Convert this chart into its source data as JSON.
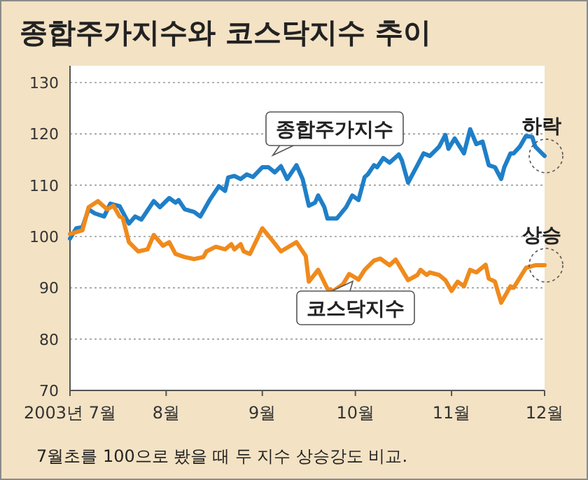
{
  "chart_data": {
    "type": "line",
    "title": "종합주가지수와 코스닥지수 추이",
    "xlim": [
      "2003-07-01",
      "2003-12-01"
    ],
    "xticks": [
      {
        "value": "2003-07-01",
        "label": "2003년 7월"
      },
      {
        "value": "2003-08-01",
        "label": "8월"
      },
      {
        "value": "2003-09-01",
        "label": "9월"
      },
      {
        "value": "2003-10-01",
        "label": "10월"
      },
      {
        "value": "2003-11-01",
        "label": "11월"
      },
      {
        "value": "2003-12-01",
        "label": "12월"
      }
    ],
    "ylim": [
      70,
      130
    ],
    "yticks": [
      70,
      80,
      90,
      100,
      110,
      120,
      130
    ],
    "grid": "y",
    "legend": false,
    "marker": "none",
    "line_style": "solid",
    "series": [
      {
        "name": "종합주가지수",
        "color": "#1f7fc8",
        "x": [
          "2003-07-01",
          "2003-07-03",
          "2003-07-05",
          "2003-07-07",
          "2003-07-09",
          "2003-07-12",
          "2003-07-14",
          "2003-07-17",
          "2003-07-20",
          "2003-07-22",
          "2003-07-24",
          "2003-07-28",
          "2003-07-30",
          "2003-08-02",
          "2003-08-04",
          "2003-08-05",
          "2003-08-07",
          "2003-08-10",
          "2003-08-12",
          "2003-08-15",
          "2003-08-18",
          "2003-08-20",
          "2003-08-21",
          "2003-08-23",
          "2003-08-25",
          "2003-08-27",
          "2003-08-29",
          "2003-09-01",
          "2003-09-03",
          "2003-09-05",
          "2003-09-07",
          "2003-09-09",
          "2003-09-12",
          "2003-09-14",
          "2003-09-16",
          "2003-09-18",
          "2003-09-19",
          "2003-09-21",
          "2003-09-22",
          "2003-09-25",
          "2003-09-28",
          "2003-09-30",
          "2003-10-02",
          "2003-10-04",
          "2003-10-05",
          "2003-10-07",
          "2003-10-08",
          "2003-10-10",
          "2003-10-12",
          "2003-10-15",
          "2003-10-16",
          "2003-10-18",
          "2003-10-21",
          "2003-10-23",
          "2003-10-25",
          "2003-10-28",
          "2003-10-30",
          "2003-10-31",
          "2003-11-02",
          "2003-11-05",
          "2003-11-07",
          "2003-11-09",
          "2003-11-11",
          "2003-11-13",
          "2003-11-15",
          "2003-11-17",
          "2003-11-18",
          "2003-11-20",
          "2003-11-21",
          "2003-11-23",
          "2003-11-25",
          "2003-11-27",
          "2003-11-28",
          "2003-12-01"
        ],
        "values": [
          99.6,
          101.6,
          101.8,
          105.3,
          104.5,
          103.9,
          106.4,
          105.9,
          102.5,
          103.9,
          103.3,
          106.9,
          105.7,
          107.5,
          106.6,
          107.1,
          105.3,
          104.8,
          103.9,
          107.1,
          109.8,
          108.9,
          111.5,
          111.8,
          111.2,
          112.1,
          111.6,
          113.5,
          113.5,
          112.5,
          113.7,
          111.2,
          113.9,
          111.2,
          106,
          106.6,
          108,
          105.7,
          103.5,
          103.5,
          105.7,
          108,
          107.1,
          111.6,
          112.1,
          113.9,
          113.5,
          115.3,
          114.4,
          116,
          114.8,
          110.5,
          113.9,
          116.2,
          115.7,
          117.5,
          119.8,
          117.1,
          119.1,
          116.2,
          120.9,
          118,
          118.5,
          113.9,
          113.5,
          111.2,
          113.5,
          116.2,
          116.2,
          117.5,
          119.6,
          119.4,
          117.5,
          115.7
        ]
      },
      {
        "name": "코스닥지수",
        "color": "#f08a1c",
        "x": [
          "2003-07-01",
          "2003-07-05",
          "2003-07-07",
          "2003-07-10",
          "2003-07-13",
          "2003-07-15",
          "2003-07-17",
          "2003-07-18",
          "2003-07-20",
          "2003-07-23",
          "2003-07-26",
          "2003-07-28",
          "2003-07-31",
          "2003-08-02",
          "2003-08-04",
          "2003-08-07",
          "2003-08-10",
          "2003-08-13",
          "2003-08-14",
          "2003-08-17",
          "2003-08-20",
          "2003-08-22",
          "2003-08-23",
          "2003-08-25",
          "2003-08-26",
          "2003-08-28",
          "2003-09-01",
          "2003-09-04",
          "2003-09-07",
          "2003-09-12",
          "2003-09-15",
          "2003-09-16",
          "2003-09-19",
          "2003-09-22",
          "2003-09-24",
          "2003-09-27",
          "2003-09-29",
          "2003-10-02",
          "2003-10-04",
          "2003-10-07",
          "2003-10-09",
          "2003-10-12",
          "2003-10-14",
          "2003-10-16",
          "2003-10-18",
          "2003-10-21",
          "2003-10-22",
          "2003-10-24",
          "2003-10-25",
          "2003-10-28",
          "2003-10-30",
          "2003-11-01",
          "2003-11-03",
          "2003-11-05",
          "2003-11-07",
          "2003-11-09",
          "2003-11-12",
          "2003-11-13",
          "2003-11-15",
          "2003-11-17",
          "2003-11-20",
          "2003-11-21",
          "2003-11-25",
          "2003-11-28",
          "2003-12-01"
        ],
        "values": [
          100.5,
          101.2,
          105.7,
          106.9,
          105.3,
          106,
          103.9,
          103.6,
          98.9,
          97.1,
          97.5,
          100.3,
          98.2,
          98.9,
          96.6,
          96,
          95.6,
          96,
          97.1,
          98,
          97.5,
          98.5,
          97.5,
          98.5,
          97.1,
          96.6,
          101.6,
          99.4,
          97.1,
          98.9,
          96.2,
          91.2,
          93.5,
          89.8,
          89.4,
          90.7,
          92.7,
          91.6,
          93.5,
          95.3,
          95.7,
          94.4,
          95.5,
          93.5,
          91.5,
          92.5,
          93.5,
          92.5,
          93,
          92.5,
          91.5,
          89.4,
          91.2,
          90.3,
          93.5,
          93,
          94.5,
          91.8,
          91.2,
          87.1,
          90.3,
          90,
          93.9,
          94.4,
          94.4
        ]
      }
    ],
    "annotations": [
      {
        "text": "하락",
        "x": "2003-12-01",
        "y": 115.7
      },
      {
        "text": "상승",
        "x": "2003-12-01",
        "y": 94.4
      },
      "7월초를 100으로 봤을 때 두 지수 상승강도 비교."
    ]
  }
}
